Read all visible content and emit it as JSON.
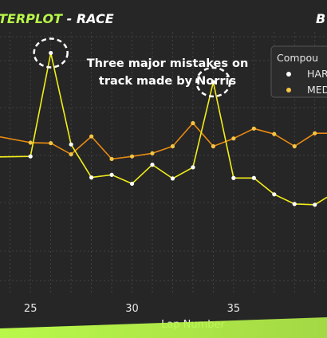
{
  "chart_data": {
    "type": "line",
    "title_accent": "TERPLOT",
    "title_rest": " - RACE",
    "title_right": "B",
    "xlabel": "Lap Number",
    "x_ticks": [
      "25",
      "30",
      "35"
    ],
    "x_tick_values": [
      25,
      30,
      35
    ],
    "xlim": [
      23.5,
      39.6
    ],
    "ylim": [
      0,
      100
    ],
    "grid": true,
    "annotation": "Three major mistakes on\ntrack made by Norris",
    "annotation_lines": [
      "Three major mistakes on",
      "track made by Norris"
    ],
    "highlighted_laps": [
      26,
      34
    ],
    "legend": {
      "title": "Compou",
      "placement": "top-right",
      "entries": [
        {
          "label": "HAR",
          "color": "#ffffff"
        },
        {
          "label": "MED",
          "color": "#f6c544"
        }
      ]
    },
    "series": [
      {
        "color": "#f2ee1a",
        "x": [
          23.5,
          25,
          26,
          27,
          28,
          29,
          30,
          31,
          32,
          33,
          34,
          35,
          36,
          37,
          38,
          39,
          39.6
        ],
        "y": [
          52.5,
          52.7,
          92.5,
          57.3,
          44.6,
          45.6,
          42.2,
          49.5,
          44.2,
          48.5,
          81.3,
          44.4,
          44.4,
          38.1,
          34.4,
          34.1,
          37
        ]
      },
      {
        "color": "#e98a13",
        "x": [
          23.5,
          25,
          26,
          27,
          28,
          29,
          30,
          31,
          32,
          33,
          34,
          35,
          36,
          37,
          38,
          39,
          39.6
        ],
        "y": [
          60.2,
          58.0,
          57.8,
          53.5,
          60.4,
          51.7,
          52.7,
          53.9,
          56.6,
          65.5,
          56.6,
          59.6,
          63.4,
          61.3,
          56.6,
          61.6,
          61.6
        ]
      }
    ],
    "markers": [
      {
        "x": 25,
        "y": 52.7,
        "color": "#ffffff"
      },
      {
        "x": 26,
        "y": 92.5,
        "color": "#ffffff"
      },
      {
        "x": 27,
        "y": 57.3,
        "color": "#ffffff"
      },
      {
        "x": 28,
        "y": 44.6,
        "color": "#ffffff"
      },
      {
        "x": 29,
        "y": 45.6,
        "color": "#ffffff"
      },
      {
        "x": 30,
        "y": 42.2,
        "color": "#ffffff"
      },
      {
        "x": 31,
        "y": 49.5,
        "color": "#ffffff"
      },
      {
        "x": 32,
        "y": 44.2,
        "color": "#ffffff"
      },
      {
        "x": 33,
        "y": 48.5,
        "color": "#ffffff"
      },
      {
        "x": 34,
        "y": 81.3,
        "color": "#ffffff"
      },
      {
        "x": 35,
        "y": 44.4,
        "color": "#ffffff"
      },
      {
        "x": 36,
        "y": 44.4,
        "color": "#ffffff"
      },
      {
        "x": 37,
        "y": 38.1,
        "color": "#ffffff"
      },
      {
        "x": 38,
        "y": 34.4,
        "color": "#ffffff"
      },
      {
        "x": 39,
        "y": 34.1,
        "color": "#ffffff"
      },
      {
        "x": 25,
        "y": 58.0,
        "color": "#f6c544"
      },
      {
        "x": 26,
        "y": 57.8,
        "color": "#f6c544"
      },
      {
        "x": 27,
        "y": 53.5,
        "color": "#f6c544"
      },
      {
        "x": 28,
        "y": 60.4,
        "color": "#f6c544"
      },
      {
        "x": 29,
        "y": 51.7,
        "color": "#f6c544"
      },
      {
        "x": 30,
        "y": 52.7,
        "color": "#f6c544"
      },
      {
        "x": 31,
        "y": 53.9,
        "color": "#f6c544"
      },
      {
        "x": 32,
        "y": 56.6,
        "color": "#f6c544"
      },
      {
        "x": 33,
        "y": 65.5,
        "color": "#f6c544"
      },
      {
        "x": 34,
        "y": 56.6,
        "color": "#f6c544"
      },
      {
        "x": 35,
        "y": 59.6,
        "color": "#f6c544"
      },
      {
        "x": 36,
        "y": 63.4,
        "color": "#f6c544"
      },
      {
        "x": 37,
        "y": 61.3,
        "color": "#f6c544"
      },
      {
        "x": 38,
        "y": 56.6,
        "color": "#f6c544"
      },
      {
        "x": 39,
        "y": 61.6,
        "color": "#f6c544"
      }
    ],
    "colors": {
      "background": "#262626",
      "grid": "#4a4a4a",
      "accent": "#b9f84a",
      "title_text": "#ffffff"
    }
  }
}
